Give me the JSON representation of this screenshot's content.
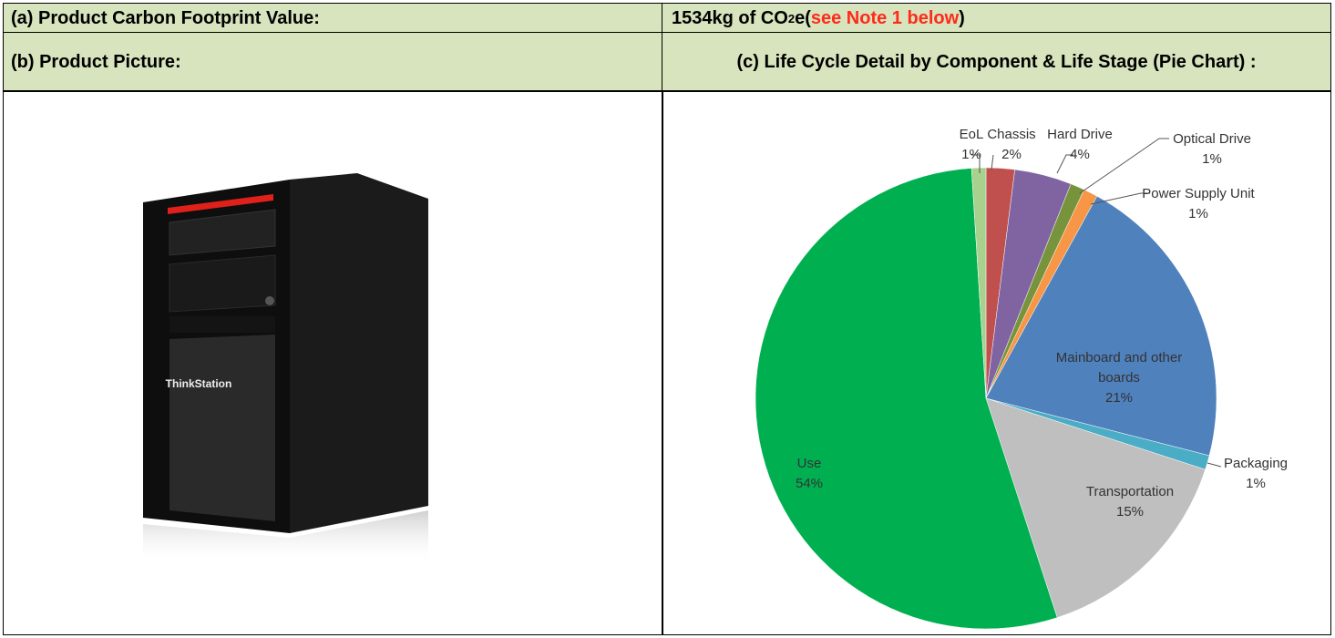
{
  "footprint": {
    "label": "(a) Product Carbon Footprint Value:",
    "value": 1534,
    "unit": "kg of CO",
    "unit_subscript": "2",
    "unit_suffix": "e",
    "note_open": "(",
    "note": "see Note 1 below",
    "note_close": ")"
  },
  "picture": {
    "label": "(b) Product Picture:",
    "brand": "ThinkStation"
  },
  "chart_data": {
    "type": "pie",
    "title": "(c) Life Cycle Detail by Component & Life Stage (Pie Chart) :",
    "categories": [
      "Chassis",
      "Hard Drive",
      "Optical Drive",
      "Power Supply Unit",
      "Mainboard and other boards",
      "Packaging",
      "Transportation",
      "Use",
      "EoL"
    ],
    "values": [
      2,
      4,
      1,
      1,
      21,
      1,
      15,
      54,
      1
    ],
    "value_labels": [
      "2%",
      "4%",
      "1%",
      "1%",
      "21%",
      "1%",
      "15%",
      "54%",
      "1%"
    ],
    "colors": [
      "#c0504d",
      "#8064a2",
      "#77933c",
      "#f79646",
      "#4f81bd",
      "#4bacc6",
      "#bfbfbf",
      "#00b050",
      "#a9d18e"
    ]
  }
}
